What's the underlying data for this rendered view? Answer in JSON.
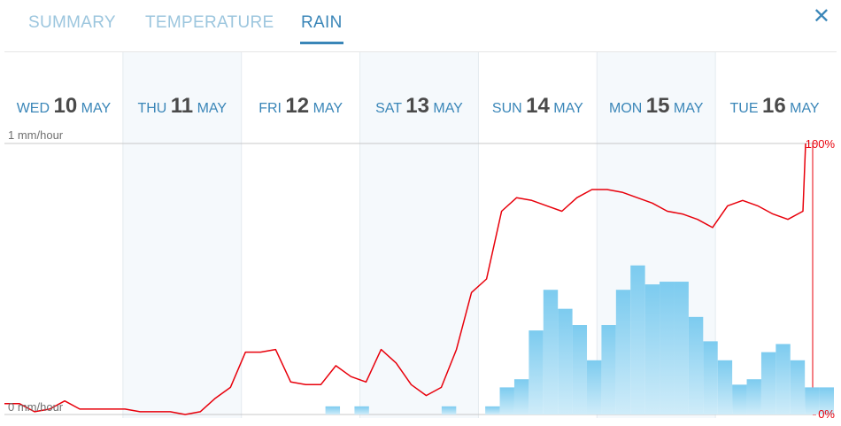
{
  "tabs": {
    "summary": "SUMMARY",
    "temperature": "TEMPERATURE",
    "rain": "RAIN",
    "active": "rain"
  },
  "close_icon": "close-icon",
  "colors": {
    "accent": "#3a86b8",
    "tab_inactive": "#9cc6de",
    "bar_top": "#7ccbef",
    "bar_bottom": "#cfecf9",
    "probability_line": "#e8000b",
    "shaded_day": "#f5f9fc"
  },
  "chart_data": {
    "type": "bar",
    "days": [
      {
        "dow": "WED",
        "num": "10",
        "month": "MAY",
        "shaded": false
      },
      {
        "dow": "THU",
        "num": "11",
        "month": "MAY",
        "shaded": true
      },
      {
        "dow": "FRI",
        "num": "12",
        "month": "MAY",
        "shaded": false
      },
      {
        "dow": "SAT",
        "num": "13",
        "month": "MAY",
        "shaded": true
      },
      {
        "dow": "SUN",
        "num": "14",
        "month": "MAY",
        "shaded": false
      },
      {
        "dow": "MON",
        "num": "15",
        "month": "MAY",
        "shaded": true
      },
      {
        "dow": "TUE",
        "num": "16",
        "month": "MAY",
        "shaded": false
      }
    ],
    "left_axis": {
      "top_label": "1 mm/hour",
      "bottom_label": "0 mm/hour",
      "range": [
        0,
        1
      ]
    },
    "right_axis": {
      "top_label": "100%",
      "bottom_label": "0%",
      "range": [
        0,
        100
      ]
    },
    "series": [
      {
        "kind": "bar",
        "unit": "mm/hour",
        "values": [
          0,
          0,
          0,
          0,
          0,
          0,
          0,
          0,
          0,
          0,
          0,
          0,
          0,
          0,
          0.03,
          0,
          0.03,
          0,
          0,
          0,
          0,
          0,
          0.03,
          0,
          0,
          0.03,
          0.1,
          0.13,
          0.31,
          0.46,
          0.39,
          0.33,
          0.2,
          0.33,
          0.46,
          0.55,
          0.48,
          0.49,
          0.49,
          0.36,
          0.27,
          0.2,
          0.11,
          0.13,
          0.23,
          0.26,
          0.2,
          0.1,
          0.1
        ]
      },
      {
        "kind": "line",
        "unit": "%",
        "values": [
          4,
          4,
          1,
          2,
          5,
          2,
          2,
          2,
          2,
          1,
          1,
          1,
          0,
          1,
          6,
          10,
          23,
          23,
          24,
          12,
          11,
          11,
          18,
          14,
          12,
          24,
          19,
          11,
          7,
          10,
          24,
          45,
          50,
          75,
          80,
          79,
          77,
          75,
          80,
          83,
          83,
          82,
          80,
          78,
          75,
          74,
          72,
          69,
          77,
          79,
          77,
          74,
          72,
          75
        ]
      }
    ]
  }
}
